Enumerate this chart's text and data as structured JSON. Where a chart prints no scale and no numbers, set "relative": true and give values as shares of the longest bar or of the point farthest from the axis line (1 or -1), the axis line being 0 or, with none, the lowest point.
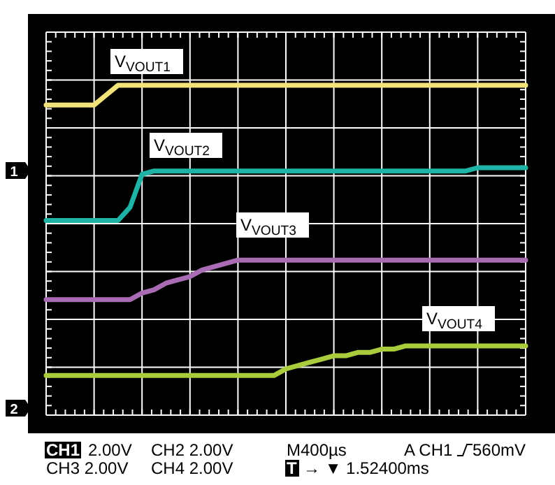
{
  "chart_data": {
    "type": "line",
    "relative": true,
    "grid": true,
    "legend": false,
    "marker": "none",
    "line_style": "solid",
    "categories": [
      null,
      null,
      null,
      null,
      null,
      null,
      null,
      null,
      null,
      null,
      null,
      null,
      null,
      null,
      null,
      null,
      null,
      null,
      null,
      null,
      null,
      null,
      null,
      null,
      null,
      null,
      null,
      null,
      null,
      null,
      null,
      null,
      null,
      null,
      null,
      null,
      null,
      null,
      null,
      null,
      null
    ],
    "series": [
      {
        "name": "V$_{VOUT1}$",
        "color": "#f2e27a",
        "values": [
          0.94,
          0.94,
          0.94,
          0.94,
          0.94,
          0.97,
          1,
          1,
          1,
          1,
          1,
          1,
          1,
          1,
          1,
          1,
          1,
          1,
          1,
          1,
          1,
          1,
          1,
          1,
          1,
          1,
          1,
          1,
          1,
          1,
          1,
          1,
          1,
          1,
          1,
          1,
          1,
          1,
          1,
          1,
          1
        ]
      },
      {
        "name": "V$_{VOUT2}$",
        "color": "#1fb3a5",
        "values": [
          0.59,
          0.59,
          0.59,
          0.59,
          0.59,
          0.59,
          0.59,
          0.63,
          0.73,
          0.74,
          0.74,
          0.74,
          0.74,
          0.74,
          0.74,
          0.74,
          0.74,
          0.74,
          0.74,
          0.74,
          0.74,
          0.74,
          0.74,
          0.74,
          0.74,
          0.74,
          0.74,
          0.74,
          0.74,
          0.74,
          0.74,
          0.74,
          0.74,
          0.74,
          0.74,
          0.74,
          0.75,
          0.75,
          0.75,
          0.75,
          0.75
        ]
      },
      {
        "name": "V$_{VOUT3}$",
        "color": "#a86bb4",
        "values": [
          0.35,
          0.35,
          0.35,
          0.35,
          0.35,
          0.35,
          0.35,
          0.35,
          0.37,
          0.38,
          0.4,
          0.41,
          0.42,
          0.44,
          0.45,
          0.46,
          0.47,
          0.47,
          0.47,
          0.47,
          0.47,
          0.47,
          0.47,
          0.47,
          0.47,
          0.47,
          0.47,
          0.47,
          0.47,
          0.47,
          0.47,
          0.47,
          0.47,
          0.47,
          0.47,
          0.47,
          0.47,
          0.47,
          0.47,
          0.47,
          0.47
        ]
      },
      {
        "name": "V$_{VOUT4}$",
        "color": "#a8cc3c",
        "values": [
          0.12,
          0.12,
          0.12,
          0.12,
          0.12,
          0.12,
          0.12,
          0.12,
          0.12,
          0.12,
          0.12,
          0.12,
          0.12,
          0.12,
          0.12,
          0.12,
          0.12,
          0.12,
          0.12,
          0.12,
          0.14,
          0.15,
          0.16,
          0.17,
          0.18,
          0.18,
          0.19,
          0.19,
          0.2,
          0.2,
          0.21,
          0.21,
          0.21,
          0.21,
          0.21,
          0.21,
          0.21,
          0.21,
          0.21,
          0.21,
          0.21
        ]
      }
    ],
    "annotations": [
      "1",
      "2",
      "CH1",
      "2.00V",
      "CH2 2.00V",
      "CH3 2.00V",
      "CH4 2.00V",
      "M400µs",
      "A CH1",
      "560mV",
      "T",
      "→ ▼ 1.52400ms"
    ]
  }
}
